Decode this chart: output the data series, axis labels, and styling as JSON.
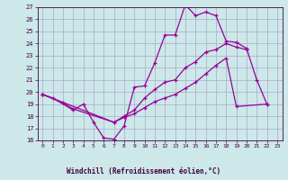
{
  "xlabel": "Windchill (Refroidissement éolien,°C)",
  "bg_color": "#cce8e8",
  "grid_color": "#aaaacc",
  "line_color": "#990099",
  "xlim": [
    -0.5,
    23.5
  ],
  "ylim": [
    16,
    27
  ],
  "xticks": [
    0,
    1,
    2,
    3,
    4,
    5,
    6,
    7,
    8,
    9,
    10,
    11,
    12,
    13,
    14,
    15,
    16,
    17,
    18,
    19,
    20,
    21,
    22,
    23
  ],
  "yticks": [
    16,
    17,
    18,
    19,
    20,
    21,
    22,
    23,
    24,
    25,
    26,
    27
  ],
  "line1_x": [
    0,
    1,
    3,
    4,
    5,
    6,
    7,
    8,
    9,
    10,
    11,
    12,
    13,
    14,
    15,
    16,
    17,
    18,
    19,
    20,
    21,
    22
  ],
  "line1_y": [
    19.8,
    19.5,
    18.5,
    19.0,
    17.5,
    16.2,
    16.1,
    17.2,
    20.4,
    20.5,
    22.4,
    24.7,
    24.7,
    27.2,
    26.3,
    26.6,
    26.3,
    24.2,
    24.1,
    23.6,
    21.0,
    19.0
  ],
  "line2_x": [
    0,
    2,
    3,
    7,
    8,
    9,
    10,
    11,
    12,
    13,
    14,
    15,
    16,
    17,
    18,
    19,
    20
  ],
  "line2_y": [
    19.8,
    19.1,
    18.6,
    17.5,
    18.0,
    18.5,
    19.5,
    20.2,
    20.8,
    21.0,
    22.0,
    22.5,
    23.3,
    23.5,
    24.0,
    23.7,
    23.5
  ],
  "line3_x": [
    0,
    7,
    8,
    9,
    10,
    11,
    12,
    13,
    14,
    15,
    16,
    17,
    18,
    19,
    22
  ],
  "line3_y": [
    19.8,
    17.5,
    17.9,
    18.2,
    18.7,
    19.2,
    19.5,
    19.8,
    20.3,
    20.8,
    21.5,
    22.2,
    22.8,
    18.8,
    19.0
  ]
}
